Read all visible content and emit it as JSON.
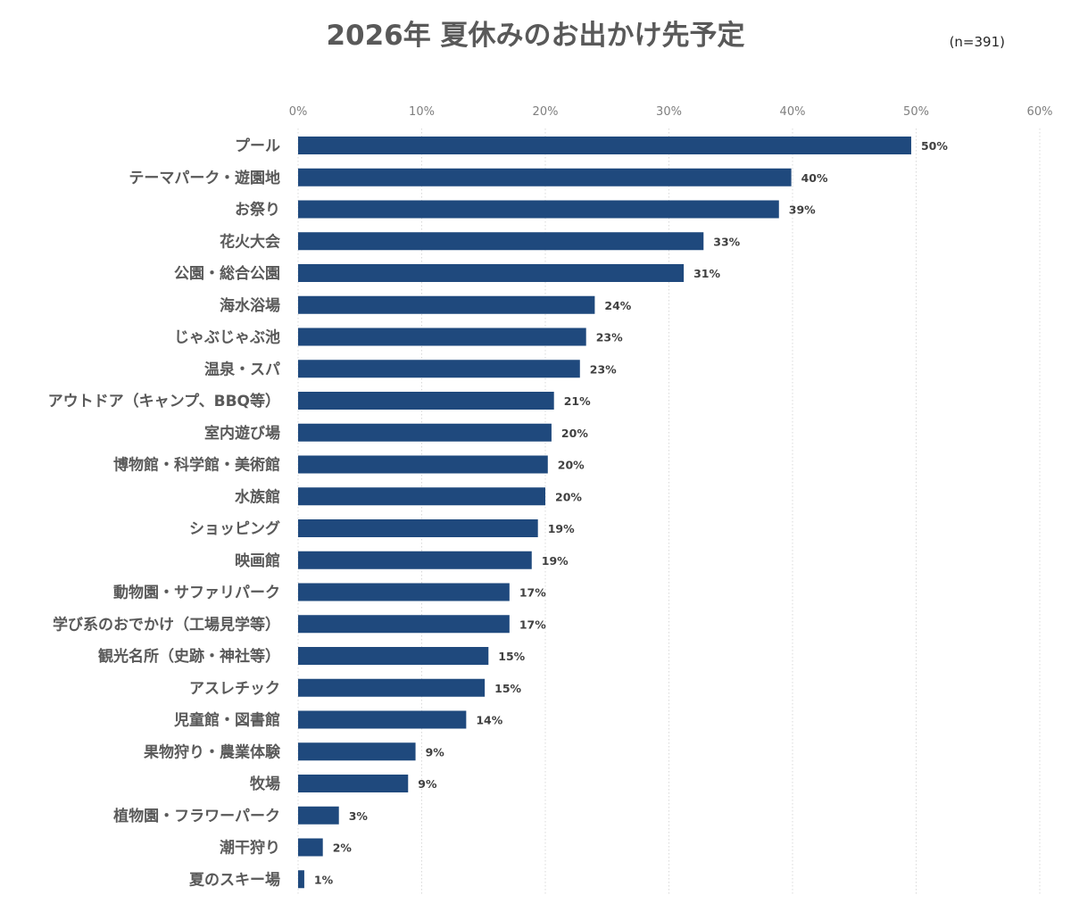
{
  "chart_data": {
    "type": "bar",
    "orientation": "horizontal",
    "title": "2026年 夏休みのお出かけ先予定",
    "annotation": "(n=391)",
    "xlim": [
      0,
      60
    ],
    "x_ticks": [
      "0%",
      "10%",
      "20%",
      "30%",
      "40%",
      "50%",
      "60%"
    ],
    "x_tick_values": [
      0,
      10,
      20,
      30,
      40,
      50,
      60
    ],
    "x_axis_position": "top",
    "grid": true,
    "legend": "none",
    "bar_color": "#1f497d",
    "categories": [
      "プール",
      "テーマパーク・遊園地",
      "お祭り",
      "花火大会",
      "公園・総合公園",
      "海水浴場",
      "じゃぶじゃぶ池",
      "温泉・スパ",
      "アウトドア（キャンプ、BBQ等）",
      "室内遊び場",
      "博物館・科学館・美術館",
      "水族館",
      "ショッピング",
      "映画館",
      "動物園・サファリパーク",
      "学び系のおでかけ（工場見学等）",
      "観光名所（史跡・神社等）",
      "アスレチック",
      "児童館・図書館",
      "果物狩り・農業体験",
      "牧場",
      "植物園・フラワーパーク",
      "潮干狩り",
      "夏のスキー場"
    ],
    "values": [
      49.6,
      39.9,
      38.9,
      32.8,
      31.2,
      24.0,
      23.3,
      22.8,
      20.7,
      20.5,
      20.2,
      20.0,
      19.4,
      18.9,
      17.1,
      17.1,
      15.4,
      15.1,
      13.6,
      9.5,
      8.9,
      3.3,
      2.0,
      0.5
    ],
    "data_labels": [
      "50%",
      "40%",
      "39%",
      "33%",
      "31%",
      "24%",
      "23%",
      "23%",
      "21%",
      "20%",
      "20%",
      "20%",
      "19%",
      "19%",
      "17%",
      "17%",
      "15%",
      "15%",
      "14%",
      "9%",
      "9%",
      "3%",
      "2%",
      "1%"
    ]
  }
}
